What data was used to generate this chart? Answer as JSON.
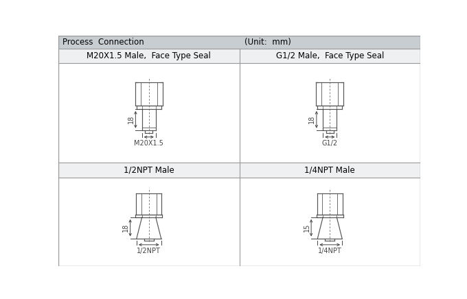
{
  "title_header": "Process  Connection",
  "unit_header": "(Unit:  mm)",
  "header_bg": "#c8cdd2",
  "cell_bg": "#eef0f2",
  "border_color": "#999999",
  "drawing_line_color": "#555555",
  "panels": [
    {
      "label": "M20X1.5 Male,  Face Type Seal",
      "dim_height": "18",
      "dim_width": "M20X1.5",
      "type": "straight"
    },
    {
      "label": "G1/2 Male,  Face Type Seal",
      "dim_height": "18",
      "dim_width": "G1/2",
      "type": "straight"
    },
    {
      "label": "1/2NPT Male",
      "dim_height": "18",
      "dim_width": "1/2NPT",
      "type": "tapered"
    },
    {
      "label": "1/4NPT Male",
      "dim_height": "15",
      "dim_width": "1/4NPT",
      "type": "tapered"
    }
  ]
}
